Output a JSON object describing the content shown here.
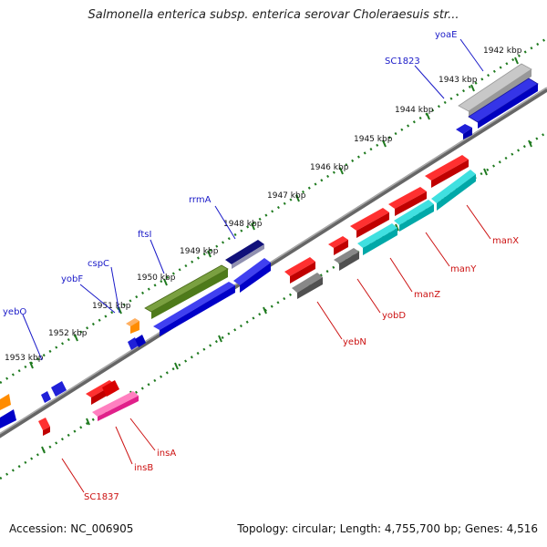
{
  "title": "Salmonella enterica subsp. enterica serovar Choleraesuis str...",
  "footer": {
    "accession": "Accession: NC_006905",
    "topology": "Topology: circular; Length: 4,755,700 bp; Genes: 4,516"
  },
  "colors": {
    "forward_label": "#1a1ac8",
    "reverse_label": "#cc1111",
    "ticks": "#1f7a1f",
    "backbone": "#666666"
  },
  "kbp_ticks": [
    {
      "label": "1942 kbp"
    },
    {
      "label": "1943 kbp"
    },
    {
      "label": "1944 kbp"
    },
    {
      "label": "1945 kbp"
    },
    {
      "label": "1946 kbp"
    },
    {
      "label": "1947 kbp"
    },
    {
      "label": "1948 kbp"
    },
    {
      "label": "1949 kbp"
    },
    {
      "label": "1950 kbp"
    },
    {
      "label": "1951 kbp"
    },
    {
      "label": "1952 kbp"
    },
    {
      "label": "1953 kbp"
    }
  ],
  "forward_genes": [
    {
      "label": "yoaE"
    },
    {
      "label": "SC1823"
    },
    {
      "label": "rrmA"
    },
    {
      "label": "ftsI"
    },
    {
      "label": "cspC"
    },
    {
      "label": "yobF"
    },
    {
      "label": "yebO"
    }
  ],
  "reverse_genes": [
    {
      "label": "manX"
    },
    {
      "label": "manY"
    },
    {
      "label": "manZ"
    },
    {
      "label": "yobD"
    },
    {
      "label": "yebN"
    },
    {
      "label": "insA"
    },
    {
      "label": "insB"
    },
    {
      "label": "SC1837"
    }
  ]
}
